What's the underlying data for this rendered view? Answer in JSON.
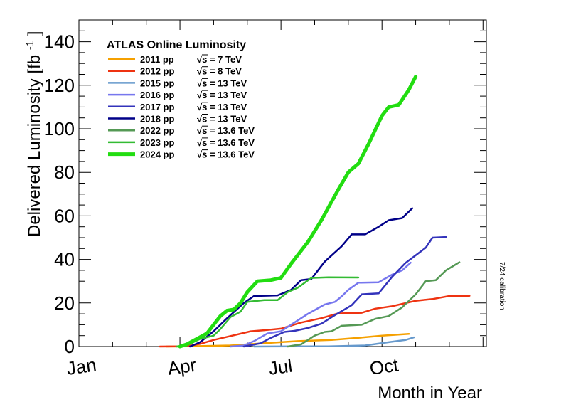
{
  "chart_data": {
    "type": "line",
    "title": "ATLAS Online Luminosity",
    "xlabel": "Month in Year",
    "ylabel": "Delivered Luminosity [fb",
    "ylabel_sup": "-1",
    "ylabel_close": "]",
    "side_note": "7/24 calibration",
    "xlim": [
      0,
      12.1
    ],
    "ylim": [
      0,
      150
    ],
    "x_ticks": [
      {
        "value": 0,
        "label": "Jan"
      },
      {
        "value": 3,
        "label": "Apr"
      },
      {
        "value": 6,
        "label": "Jul"
      },
      {
        "value": 9,
        "label": "Oct"
      }
    ],
    "y_ticks": [
      0,
      20,
      40,
      60,
      80,
      100,
      120,
      140
    ],
    "x_unit": "months since Jan 1",
    "series": [
      {
        "name": "2011 pp",
        "energy": "√s = 7 TeV",
        "color": "#f5a000",
        "width": 2.5,
        "points": [
          [
            2.6,
            0
          ],
          [
            3.2,
            0.05
          ],
          [
            4.5,
            0.5
          ],
          [
            5.5,
            1.5
          ],
          [
            6.5,
            2.5
          ],
          [
            7.5,
            3
          ],
          [
            8.3,
            4
          ],
          [
            9,
            5
          ],
          [
            9.8,
            5.8
          ]
        ]
      },
      {
        "name": "2012 pp",
        "energy": "√s = 8 TeV",
        "color": "#ee3311",
        "width": 2.5,
        "points": [
          [
            2.4,
            0
          ],
          [
            3.0,
            0.05
          ],
          [
            3.3,
            0.4
          ],
          [
            3.6,
            1.2
          ],
          [
            4.0,
            3
          ],
          [
            4.5,
            4.8
          ],
          [
            5.1,
            7
          ],
          [
            5.5,
            7.5
          ],
          [
            6.0,
            8.2
          ],
          [
            6.6,
            11
          ],
          [
            7.2,
            13
          ],
          [
            7.7,
            15.2
          ],
          [
            8.4,
            15.5
          ],
          [
            8.8,
            17.4
          ],
          [
            9.3,
            18.5
          ],
          [
            10.0,
            21
          ],
          [
            10.5,
            21.8
          ],
          [
            11.0,
            23.2
          ],
          [
            11.6,
            23.3
          ]
        ]
      },
      {
        "name": "2015 pp",
        "energy": "√s = 13 TeV",
        "color": "#6699cc",
        "width": 2.5,
        "points": [
          [
            5.2,
            0
          ],
          [
            6.6,
            0.05
          ],
          [
            7.4,
            0.1
          ],
          [
            8.5,
            0.5
          ],
          [
            9.2,
            2
          ],
          [
            9.7,
            3
          ],
          [
            9.95,
            4.2
          ]
        ]
      },
      {
        "name": "2016 pp",
        "energy": "√s = 13 TeV",
        "color": "#7777ee",
        "width": 2.5,
        "points": [
          [
            4.5,
            0
          ],
          [
            4.9,
            0.5
          ],
          [
            5.2,
            2.5
          ],
          [
            5.6,
            6
          ],
          [
            6.0,
            7
          ],
          [
            6.4,
            11
          ],
          [
            6.8,
            15
          ],
          [
            7.3,
            19.3
          ],
          [
            7.6,
            20.5
          ],
          [
            7.8,
            23
          ],
          [
            8.0,
            26
          ],
          [
            8.3,
            29.3
          ],
          [
            8.9,
            29.5
          ],
          [
            9.3,
            33
          ],
          [
            9.6,
            35
          ],
          [
            9.85,
            38.5
          ]
        ]
      },
      {
        "name": "2017 pp",
        "energy": "√s = 13 TeV",
        "color": "#3333bb",
        "width": 2.5,
        "points": [
          [
            4.9,
            0
          ],
          [
            5.4,
            1.5
          ],
          [
            5.7,
            4
          ],
          [
            6.1,
            6.7
          ],
          [
            6.4,
            7.2
          ],
          [
            6.8,
            8.5
          ],
          [
            7.2,
            10.5
          ],
          [
            7.6,
            14.4
          ],
          [
            8.1,
            19
          ],
          [
            8.4,
            24
          ],
          [
            8.9,
            24.4
          ],
          [
            9.3,
            32
          ],
          [
            9.7,
            38.4
          ],
          [
            10.3,
            45.4
          ],
          [
            10.5,
            50
          ],
          [
            10.9,
            50.3
          ]
        ]
      },
      {
        "name": "2018 pp",
        "energy": "√s = 13 TeV",
        "color": "#000088",
        "width": 2.5,
        "points": [
          [
            3.3,
            0
          ],
          [
            3.6,
            2
          ],
          [
            4.0,
            7
          ],
          [
            4.4,
            13
          ],
          [
            4.9,
            20
          ],
          [
            5.2,
            23.2
          ],
          [
            5.9,
            23.5
          ],
          [
            6.3,
            26
          ],
          [
            6.6,
            30.5
          ],
          [
            6.9,
            31
          ],
          [
            7.3,
            39
          ],
          [
            7.8,
            46
          ],
          [
            8.1,
            51.5
          ],
          [
            8.5,
            51.5
          ],
          [
            8.9,
            55
          ],
          [
            9.2,
            58
          ],
          [
            9.6,
            59
          ],
          [
            9.9,
            63.5
          ]
        ]
      },
      {
        "name": "2022 pp",
        "energy": "√s = 13.6 TeV",
        "color": "#559955",
        "width": 2.5,
        "points": [
          [
            6.2,
            0
          ],
          [
            6.6,
            1
          ],
          [
            7.0,
            5
          ],
          [
            7.3,
            6.7
          ],
          [
            7.5,
            7
          ],
          [
            7.8,
            9.5
          ],
          [
            8.4,
            10
          ],
          [
            8.8,
            12.7
          ],
          [
            9.2,
            14
          ],
          [
            9.6,
            18
          ],
          [
            10.0,
            24
          ],
          [
            10.3,
            30
          ],
          [
            10.6,
            30.5
          ],
          [
            10.9,
            35
          ],
          [
            11.3,
            38.7
          ]
        ]
      },
      {
        "name": "2023 pp",
        "energy": "√s = 13.6 TeV",
        "color": "#33bb33",
        "width": 2.5,
        "points": [
          [
            2.9,
            0
          ],
          [
            3.2,
            0.5
          ],
          [
            3.6,
            3.5
          ],
          [
            4.0,
            5
          ],
          [
            4.2,
            8
          ],
          [
            4.5,
            13.5
          ],
          [
            4.8,
            16
          ],
          [
            5.0,
            20.5
          ],
          [
            5.5,
            21.3
          ],
          [
            5.9,
            21.3
          ],
          [
            6.2,
            25
          ],
          [
            6.5,
            27
          ],
          [
            6.9,
            31.5
          ],
          [
            7.4,
            31.8
          ],
          [
            8.3,
            31.7
          ]
        ]
      },
      {
        "name": "2024 pp",
        "energy": "√s = 13.6 TeV",
        "color": "#22dd11",
        "width": 5,
        "points": [
          [
            3.0,
            0
          ],
          [
            3.2,
            1
          ],
          [
            3.5,
            3.5
          ],
          [
            3.8,
            6
          ],
          [
            4.0,
            10
          ],
          [
            4.2,
            14
          ],
          [
            4.4,
            16.5
          ],
          [
            4.6,
            17
          ],
          [
            4.8,
            20
          ],
          [
            5.0,
            25
          ],
          [
            5.3,
            30
          ],
          [
            5.7,
            30.5
          ],
          [
            6.0,
            31.5
          ],
          [
            6.3,
            38
          ],
          [
            6.8,
            48
          ],
          [
            7.2,
            58
          ],
          [
            7.7,
            72
          ],
          [
            8.0,
            80
          ],
          [
            8.3,
            84
          ],
          [
            8.6,
            93
          ],
          [
            9.0,
            106
          ],
          [
            9.2,
            110
          ],
          [
            9.5,
            111
          ],
          [
            9.8,
            118
          ],
          [
            10.0,
            124
          ]
        ]
      }
    ]
  }
}
